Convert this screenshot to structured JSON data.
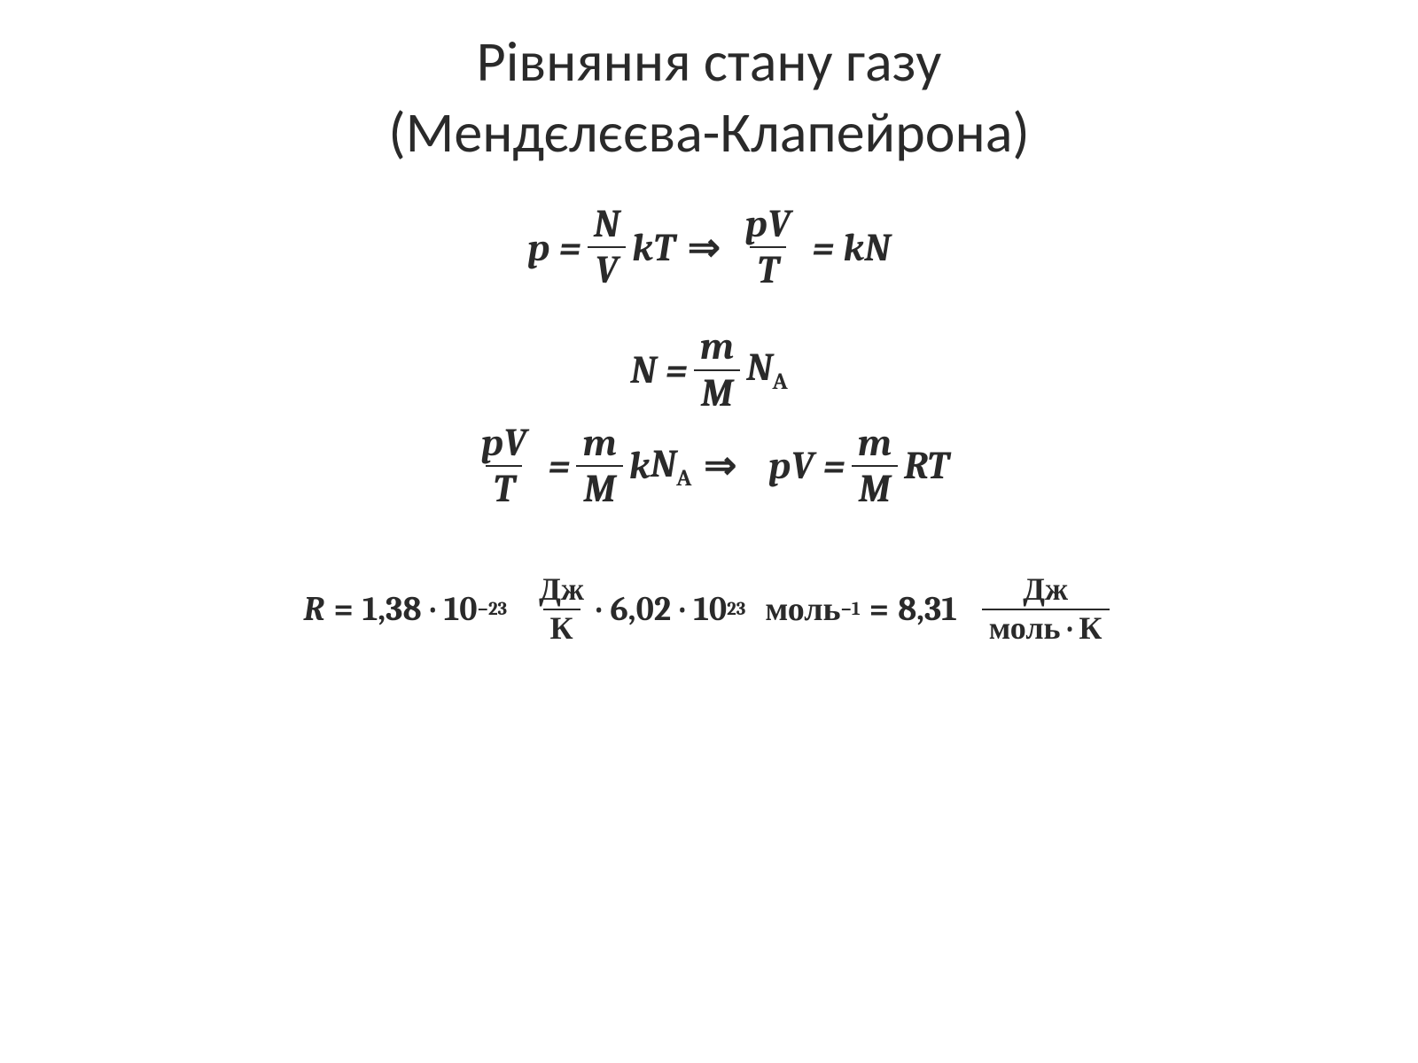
{
  "page": {
    "background_color": "#ffffff",
    "text_color": "#2a2a2a"
  },
  "title": {
    "line1": "Рівняння стану газу",
    "line2": "(Мендєлєєва-Клапейрона)",
    "fontsize": 64,
    "font_family": "Calibri"
  },
  "equations": {
    "font_family": "Cambria",
    "style": "italic-serif",
    "eq1": {
      "lhs_var": "p",
      "frac1_num": "N",
      "frac1_den": "V",
      "mid1": "kT",
      "arrow": "⇒",
      "frac2_num": "pV",
      "frac2_den": "T",
      "eq_sign": "=",
      "rhs": "kN"
    },
    "eq2": {
      "lhs_var": "N",
      "eq_sign": "=",
      "frac_num": "m",
      "frac_den": "M",
      "rhs_base": "N",
      "rhs_sub": "A"
    },
    "eq3": {
      "frac1_num": "pV",
      "frac1_den": "T",
      "eq_sign": "=",
      "frac2_num": "m",
      "frac2_den": "M",
      "mid": "k",
      "mid_base": "N",
      "mid_sub": "A",
      "arrow": "⇒",
      "rhs_lhs": "pV",
      "frac3_num": "m",
      "frac3_den": "M",
      "rhs_tail": "RT"
    },
    "eq4": {
      "lhs_var": "R",
      "eq": "=",
      "coef1": "1,38",
      "dot": "·",
      "base1": "10",
      "exp1": "−23",
      "frac1_num": "Дж",
      "frac1_den": "К",
      "coef2": "6,02",
      "base2": "10",
      "exp2": "23",
      "unit_mol": "моль",
      "exp3": "−1",
      "result": "8,31",
      "frac2_num": "Дж",
      "frac2_den": "моль · К"
    }
  }
}
